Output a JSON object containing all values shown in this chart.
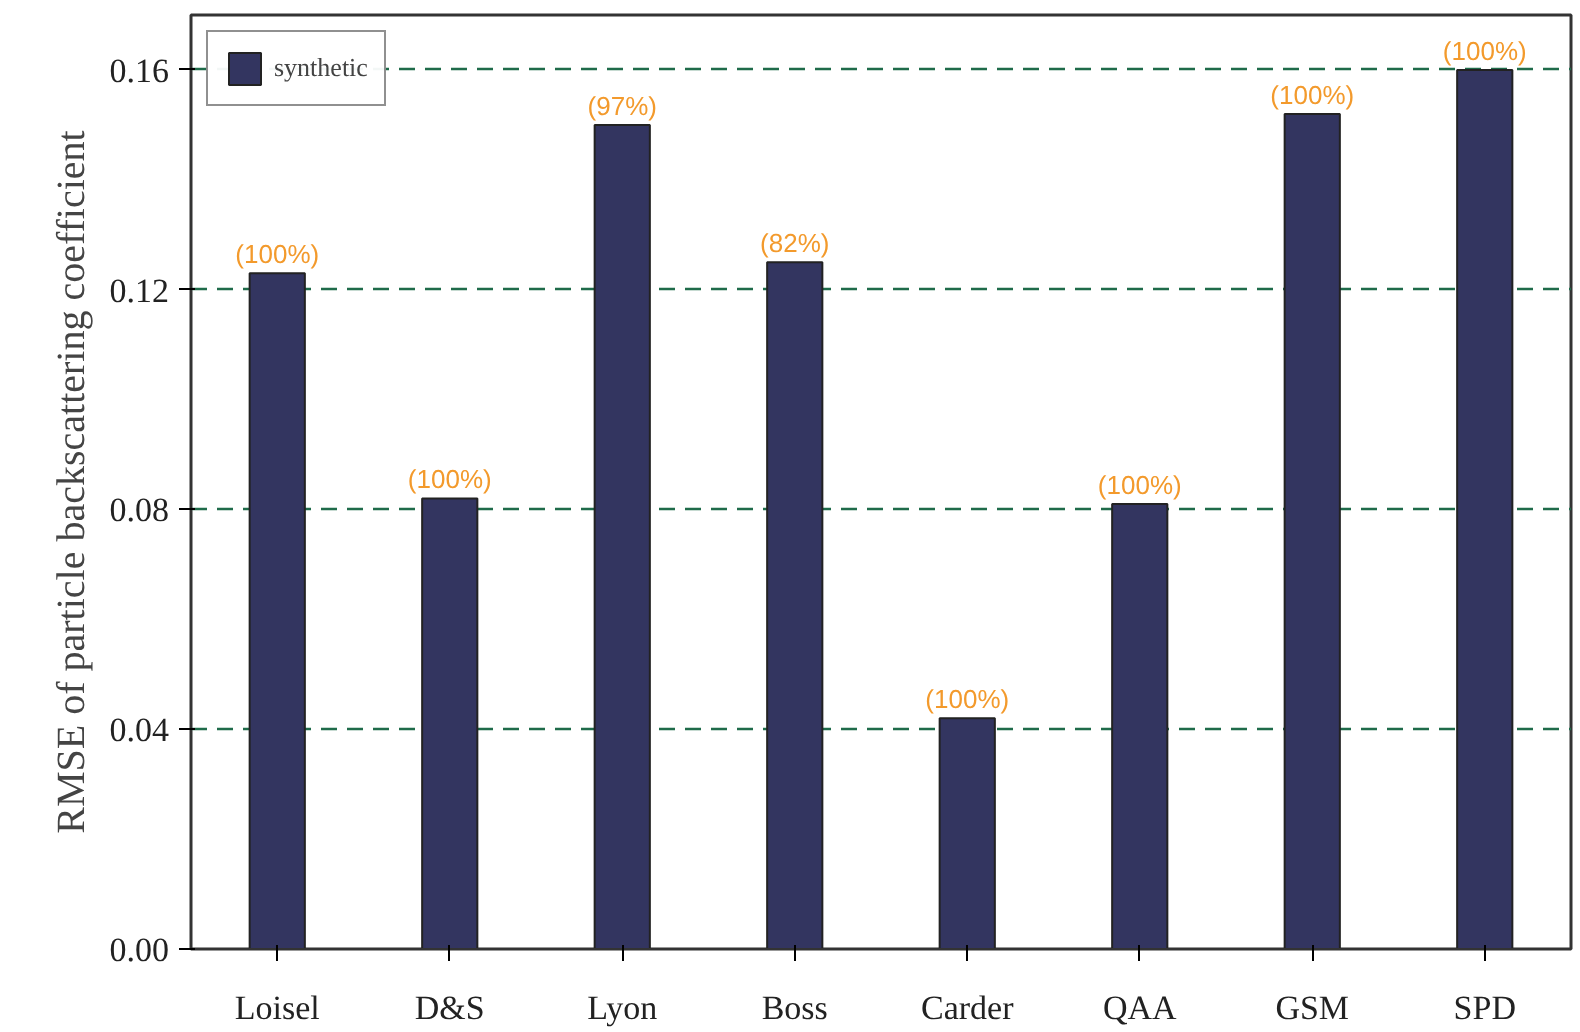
{
  "chart_data": {
    "type": "bar",
    "ylabel": "RMSE of particle backscattering coefficient",
    "categories": [
      "Loisel",
      "D&S",
      "Lyon",
      "Boss",
      "Carder",
      "QAA",
      "GSM",
      "SPD"
    ],
    "series": [
      {
        "name": "synthetic",
        "color": "#333560",
        "values": [
          0.123,
          0.082,
          0.15,
          0.125,
          0.042,
          0.081,
          0.152,
          0.16
        ]
      }
    ],
    "annotations": [
      {
        "text": "(100%)",
        "x": "Loisel",
        "y": 0.123
      },
      {
        "text": "(100%)",
        "x": "D&S",
        "y": 0.082
      },
      {
        "text": "(97%)",
        "x": "Lyon",
        "y": 0.15
      },
      {
        "text": "(82%)",
        "x": "Boss",
        "y": 0.125
      },
      {
        "text": "(100%)",
        "x": "Carder",
        "y": 0.042
      },
      {
        "text": "(100%)",
        "x": "QAA",
        "y": 0.081
      },
      {
        "text": "(100%)",
        "x": "GSM",
        "y": 0.152
      },
      {
        "text": "(100%)",
        "x": "SPD",
        "y": 0.16
      }
    ],
    "ylim": [
      0,
      0.17
    ],
    "yticks": [
      {
        "value": 0,
        "label": "0.00"
      },
      {
        "value": 0.04,
        "label": "0.04"
      },
      {
        "value": 0.08,
        "label": "0.08"
      },
      {
        "value": 0.12,
        "label": "0.12"
      },
      {
        "value": 0.16,
        "label": "0.16"
      }
    ],
    "grid": "y",
    "legend": "top left"
  }
}
